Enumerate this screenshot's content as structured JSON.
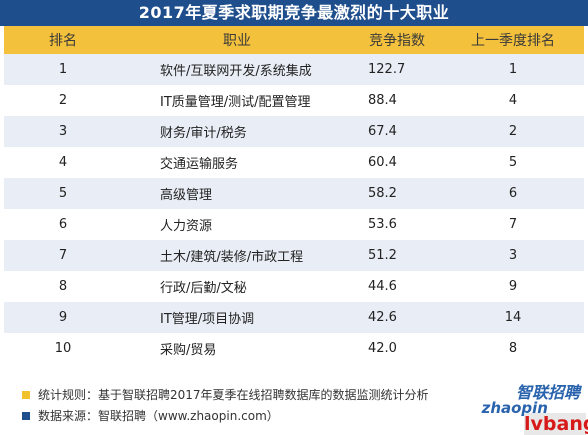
{
  "title": "2017年夏季求职期竞争最激烈的十大职业",
  "headers": {
    "rank": "排名",
    "job": "职业",
    "index": "竞争指数",
    "prev_rank": "上一季度排名"
  },
  "rows": [
    {
      "rank": "1",
      "job": "软件/互联网开发/系统集成",
      "index": "122.7",
      "prev_rank": "1"
    },
    {
      "rank": "2",
      "job": "IT质量管理/测试/配置管理",
      "index": "88.4",
      "prev_rank": "4"
    },
    {
      "rank": "3",
      "job": "财务/审计/税务",
      "index": "67.4",
      "prev_rank": "2"
    },
    {
      "rank": "4",
      "job": "交通运输服务",
      "index": "60.4",
      "prev_rank": "5"
    },
    {
      "rank": "5",
      "job": "高级管理",
      "index": "58.2",
      "prev_rank": "6"
    },
    {
      "rank": "6",
      "job": "人力资源",
      "index": "53.6",
      "prev_rank": "7"
    },
    {
      "rank": "7",
      "job": "土木/建筑/装修/市政工程",
      "index": "51.2",
      "prev_rank": "3"
    },
    {
      "rank": "8",
      "job": "行政/后勤/文秘",
      "index": "44.6",
      "prev_rank": "9"
    },
    {
      "rank": "9",
      "job": "IT管理/项目协调",
      "index": "42.6",
      "prev_rank": "14"
    },
    {
      "rank": "10",
      "job": "采购/贸易",
      "index": "42.0",
      "prev_rank": "8"
    }
  ],
  "footer": {
    "rule_note": "统计规则：基于智联招聘2017年夏季在线招聘数据库的数据监测统计分析",
    "source_note": "数据来源：智联招聘（www.zhaopin.com）",
    "brand_cn": "智联招聘",
    "brand_en": "zhaopin",
    "watermark": "lvbang"
  },
  "colors": {
    "title_bg": "#1f4e8c",
    "header_bg": "#f4c13c",
    "row_stripe": "#e9eef6",
    "bullet_yellow": "#f2c12e",
    "bullet_blue": "#1f4e8c",
    "brand_blue": "#2a63ad",
    "watermark_red": "#d61a1a"
  }
}
